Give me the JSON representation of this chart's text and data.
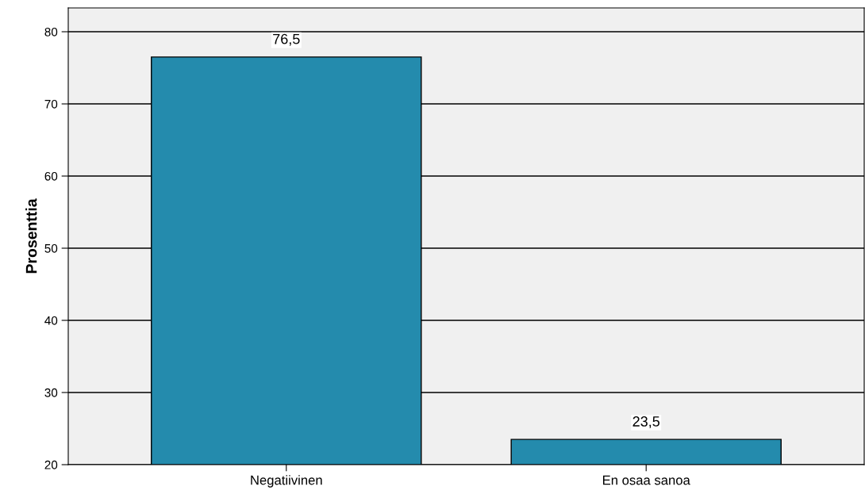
{
  "chart_data": {
    "type": "bar",
    "ylabel": "Prosenttia",
    "categories": [
      "Negatiivinen",
      "En osaa sanoa"
    ],
    "values": [
      76.5,
      23.5
    ],
    "value_labels": [
      "76,5",
      "23,5"
    ],
    "color": "#248bad",
    "ylim": [
      20,
      83.3
    ],
    "yticks": [
      20,
      30,
      40,
      50,
      60,
      70,
      80
    ],
    "grid": "y"
  }
}
